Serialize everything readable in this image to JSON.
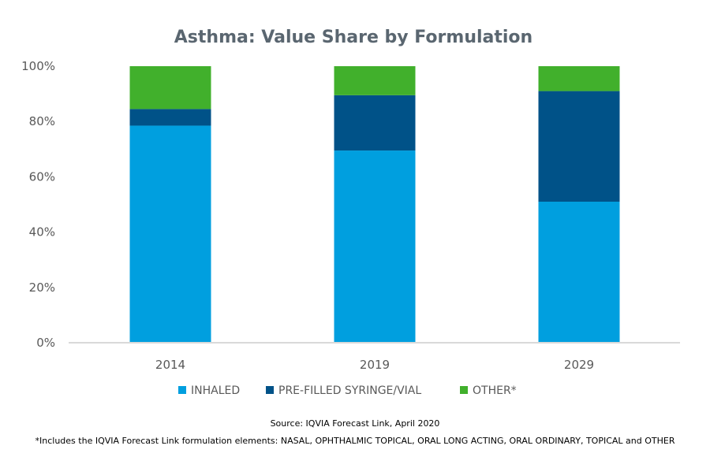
{
  "chart_data": {
    "type": "bar",
    "stacked": true,
    "title": "Asthma: Value Share by Formulation",
    "categories": [
      "2014",
      "2019",
      "2029"
    ],
    "series": [
      {
        "name": "INHALED",
        "color": "#009fdf",
        "values": [
          78.5,
          69.5,
          51
        ]
      },
      {
        "name": "PRE-FILLED SYRINGE/VIAL",
        "color": "#005288",
        "values": [
          6,
          20,
          40
        ]
      },
      {
        "name": "OTHER*",
        "color": "#41b02c",
        "values": [
          15.5,
          10.5,
          9
        ]
      }
    ],
    "ylim": [
      0,
      100
    ],
    "yticks": [
      "0%",
      "20%",
      "40%",
      "60%",
      "80%",
      "100%"
    ],
    "grid": false,
    "legend_position": "bottom"
  },
  "notes": {
    "source": "Source: IQVIA Forecast Link, April 2020",
    "footnote": "*Includes the IQVIA Forecast Link formulation elements: NASAL, OPHTHALMIC TOPICAL, ORAL LONG ACTING, ORAL ORDINARY, TOPICAL and OTHER"
  }
}
